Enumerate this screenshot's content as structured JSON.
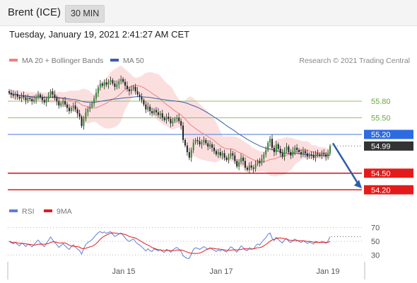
{
  "header": {
    "instrument": "Brent (ICE)",
    "timeframe": "30 MIN"
  },
  "timestamp": "Tuesday, January 19, 2021 2:41:27 AM CET",
  "copyright": "Research © 2021 Trading Central",
  "colors": {
    "bollinger_fill": "#fbdcdc",
    "ma20": "#f08080",
    "ma50": "#3a5fa8",
    "resistance": "#8cc36a",
    "pivot": "#6b8fe6",
    "support": "#e31b1b",
    "price_label": "#333333",
    "pivot_label": "#2d6be0",
    "arrow": "#2e5ea8",
    "rsi": "#5b7fd8",
    "rsi_ma": "#e31b1b",
    "candle_up": "#2e8b2e",
    "candle_down": "#1f1f1f"
  },
  "chart_data": [
    {
      "type": "candlestick",
      "title": "",
      "legend": [
        {
          "label": "MA 20 + Bollinger Bands",
          "color": "#f08080"
        },
        {
          "label": "MA 50",
          "color": "#3a5fa8"
        }
      ],
      "legend_position": "top-left",
      "x_ticks": [
        "Jan 15",
        "Jan 17",
        "Jan 19"
      ],
      "ylim": [
        54.05,
        56.35
      ],
      "levels": [
        {
          "label": "55.80",
          "value": 55.8,
          "kind": "resistance"
        },
        {
          "label": "55.50",
          "value": 55.5,
          "kind": "resistance"
        },
        {
          "label": "55.20",
          "value": 55.2,
          "kind": "pivot"
        },
        {
          "label": "54.99",
          "value": 54.99,
          "kind": "last"
        },
        {
          "label": "54.50",
          "value": 54.5,
          "kind": "support"
        },
        {
          "label": "54.20",
          "value": 54.2,
          "kind": "support"
        }
      ],
      "closes": [
        55.95,
        55.92,
        55.9,
        55.93,
        55.88,
        55.85,
        55.9,
        55.87,
        55.82,
        55.86,
        55.84,
        55.8,
        55.83,
        55.88,
        55.92,
        55.87,
        55.82,
        55.78,
        55.84,
        55.9,
        55.98,
        55.92,
        55.86,
        55.8,
        55.72,
        55.76,
        55.8,
        55.74,
        55.68,
        55.62,
        55.68,
        55.72,
        55.65,
        55.58,
        55.52,
        55.35,
        55.48,
        55.6,
        55.66,
        55.7,
        55.76,
        55.85,
        55.95,
        56.05,
        56.12,
        56.08,
        56.14,
        56.1,
        56.15,
        56.18,
        56.12,
        56.06,
        56.1,
        56.16,
        56.2,
        56.15,
        56.08,
        56.02,
        55.98,
        56.02,
        56.06,
        55.98,
        55.92,
        55.88,
        55.82,
        55.74,
        55.65,
        55.7,
        55.62,
        55.58,
        55.64,
        55.6,
        55.55,
        55.58,
        55.5,
        55.46,
        55.52,
        55.48,
        55.4,
        55.44,
        55.48,
        55.5,
        55.44,
        55.36,
        55.1,
        55.0,
        54.88,
        54.78,
        54.92,
        55.05,
        55.1,
        55.08,
        55.02,
        55.06,
        55.1,
        55.04,
        54.98,
        55.02,
        54.96,
        54.9,
        54.84,
        54.88,
        54.82,
        54.86,
        54.78,
        54.74,
        54.8,
        54.86,
        54.82,
        54.72,
        54.62,
        54.7,
        54.78,
        54.72,
        54.6,
        54.56,
        54.64,
        54.6,
        54.58,
        54.66,
        54.72,
        54.68,
        54.76,
        54.84,
        54.92,
        55.05,
        55.12,
        54.96,
        54.88,
        55.02,
        54.94,
        54.86,
        54.8,
        54.92,
        54.98,
        54.88,
        54.82,
        54.9,
        54.96,
        54.92,
        54.88,
        54.84,
        54.9,
        54.86,
        54.8,
        54.84,
        54.82,
        54.78,
        54.86,
        54.84,
        54.82,
        54.86,
        54.84,
        54.8,
        54.86,
        54.99
      ],
      "x_label": "",
      "y_label": ""
    },
    {
      "type": "line",
      "legend": [
        {
          "label": "RSI",
          "color": "#5b7fd8"
        },
        {
          "label": "9MA",
          "color": "#e31b1b"
        }
      ],
      "y_ticks": [
        70,
        50,
        30
      ],
      "ylim": [
        20,
        80
      ],
      "x_label": "",
      "y_label": ""
    }
  ]
}
